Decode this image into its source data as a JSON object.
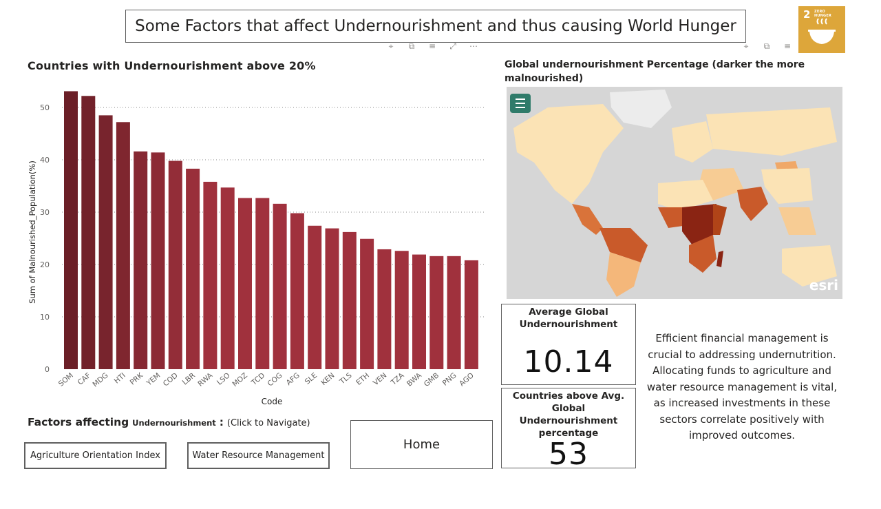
{
  "header": {
    "title": "Some Factors that affect Undernourishment and thus causing World Hunger",
    "sdg_logo": {
      "number": "2",
      "text": "ZERO HUNGER",
      "color": "#dda63a"
    }
  },
  "bar_section": {
    "title": "Countries with Undernourishment above 20%"
  },
  "chart_data": {
    "type": "bar",
    "categories": [
      "SOM",
      "CAF",
      "MDG",
      "HTI",
      "PRK",
      "YEM",
      "COD",
      "LBR",
      "RWA",
      "LSO",
      "MOZ",
      "TCD",
      "COG",
      "AFG",
      "SLE",
      "KEN",
      "TLS",
      "ETH",
      "VEN",
      "TZA",
      "BWA",
      "GMB",
      "PNG",
      "AGO"
    ],
    "values": [
      53.1,
      52.2,
      48.5,
      47.2,
      41.6,
      41.4,
      39.8,
      38.3,
      35.8,
      34.7,
      32.7,
      32.7,
      31.6,
      29.8,
      27.4,
      26.9,
      26.2,
      24.9,
      22.9,
      22.6,
      21.9,
      21.6,
      21.6,
      20.8
    ],
    "xlabel": "Code",
    "ylabel": "Sum of Malnourished_Population(%)",
    "yticks": [
      0,
      10,
      20,
      30,
      40,
      50
    ],
    "ylim": [
      0,
      55
    ],
    "grid": true,
    "color_scale": [
      "#6b1f27",
      "#a0313d"
    ]
  },
  "map_section": {
    "title": "Global undernourishment Percentage (darker the more malnourished)",
    "attribution": "esri"
  },
  "kpi_average": {
    "label": "Average Global Undernourishment",
    "value": "10.14"
  },
  "kpi_count": {
    "label": "Countries above Avg. Global Undernourishment percentage",
    "value": "53"
  },
  "note": {
    "text": "Efficient financial management is crucial to addressing undernutrition. Allocating funds to agriculture and water resource management is vital, as increased investments in these sectors correlate positively with improved outcomes."
  },
  "factors": {
    "label_prefix": "Factors affecting",
    "label_topic": "Undernourishment",
    "label_colon": ":",
    "hint": "(Click to Navigate)"
  },
  "nav": {
    "agriculture": "Agriculture Orientation Index",
    "water": "Water Resource Management",
    "home": "Home"
  },
  "visual_icons": [
    "pin-icon",
    "copy-icon",
    "filter-icon",
    "focus-icon",
    "more-icon"
  ]
}
